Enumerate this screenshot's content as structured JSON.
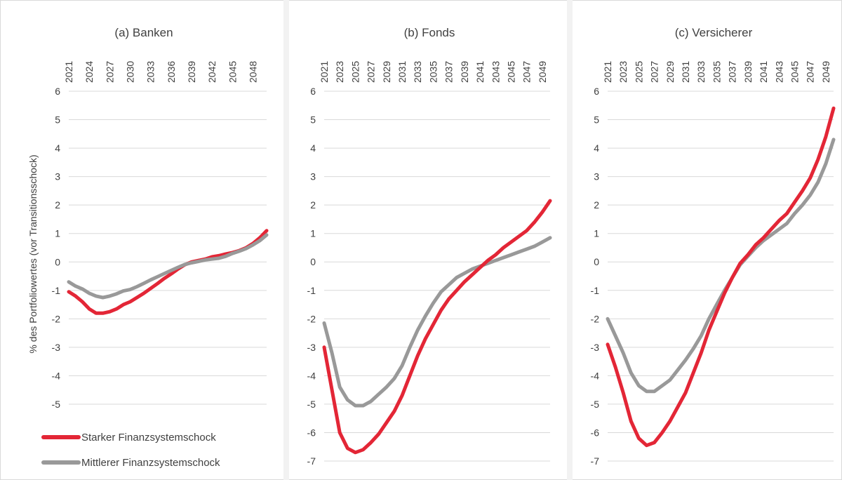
{
  "chart_data": {
    "type": "line",
    "ylabel": "% des Portfoliowertes (vor Transitionsschock)",
    "legend": {
      "placement": "bottom-left of panel (a)",
      "entries": [
        "Starker Finanzsystemschock",
        "Mittlerer Finanzsystemschock"
      ]
    },
    "colors": {
      "Starker Finanzsystemschock": "#e32636",
      "Mittlerer Finanzsystemschock": "#999999"
    },
    "grid": "horizontal",
    "panels": [
      {
        "title": "(a) Banken",
        "x_axis_position": "top",
        "x_ticks": [
          "2021",
          "2024",
          "2027",
          "2030",
          "2033",
          "2036",
          "2039",
          "2042",
          "2045",
          "2048"
        ],
        "ylim": [
          -5,
          6
        ],
        "y_ticks": [
          "6",
          "5",
          "4",
          "3",
          "2",
          "1",
          "0",
          "-1",
          "-2",
          "-3",
          "-4",
          "-5"
        ],
        "x": [
          2021,
          2022,
          2023,
          2024,
          2025,
          2026,
          2027,
          2028,
          2029,
          2030,
          2031,
          2032,
          2033,
          2034,
          2035,
          2036,
          2037,
          2038,
          2039,
          2040,
          2041,
          2042,
          2043,
          2044,
          2045,
          2046,
          2047,
          2048,
          2049,
          2050
        ],
        "series": [
          {
            "name": "Starker Finanzsystemschock",
            "values": [
              -1.05,
              -1.2,
              -1.4,
              -1.65,
              -1.8,
              -1.8,
              -1.75,
              -1.65,
              -1.5,
              -1.4,
              -1.25,
              -1.1,
              -0.93,
              -0.76,
              -0.58,
              -0.42,
              -0.25,
              -0.1,
              0.0,
              0.05,
              0.1,
              0.18,
              0.22,
              0.28,
              0.33,
              0.4,
              0.5,
              0.65,
              0.85,
              1.1
            ]
          },
          {
            "name": "Mittlerer Finanzsystemschock",
            "values": [
              -0.7,
              -0.85,
              -0.95,
              -1.1,
              -1.2,
              -1.25,
              -1.2,
              -1.12,
              -1.02,
              -0.97,
              -0.87,
              -0.75,
              -0.63,
              -0.52,
              -0.41,
              -0.3,
              -0.19,
              -0.09,
              -0.03,
              0.02,
              0.07,
              0.1,
              0.13,
              0.2,
              0.3,
              0.38,
              0.47,
              0.6,
              0.75,
              0.95
            ]
          }
        ]
      },
      {
        "title": "(b) Fonds",
        "x_axis_position": "top",
        "x_ticks": [
          "2021",
          "2023",
          "2025",
          "2027",
          "2029",
          "2031",
          "2033",
          "2035",
          "2037",
          "2039",
          "2041",
          "2043",
          "2045",
          "2047",
          "2049"
        ],
        "ylim": [
          -7,
          6
        ],
        "y_ticks": [
          "6",
          "5",
          "4",
          "3",
          "2",
          "1",
          "0",
          "-1",
          "-2",
          "-3",
          "-4",
          "-5",
          "-6",
          "-7"
        ],
        "x": [
          2021,
          2022,
          2023,
          2024,
          2025,
          2026,
          2027,
          2028,
          2029,
          2030,
          2031,
          2032,
          2033,
          2034,
          2035,
          2036,
          2037,
          2038,
          2039,
          2040,
          2041,
          2042,
          2043,
          2044,
          2045,
          2046,
          2047,
          2048,
          2049,
          2050
        ],
        "series": [
          {
            "name": "Starker Finanzsystemschock",
            "values": [
              -3.0,
              -4.5,
              -6.0,
              -6.55,
              -6.7,
              -6.6,
              -6.35,
              -6.05,
              -5.65,
              -5.25,
              -4.7,
              -4.0,
              -3.3,
              -2.7,
              -2.2,
              -1.7,
              -1.3,
              -1.0,
              -0.7,
              -0.45,
              -0.2,
              0.05,
              0.25,
              0.5,
              0.7,
              0.9,
              1.1,
              1.4,
              1.75,
              2.15
            ]
          },
          {
            "name": "Mittlerer Finanzsystemschock",
            "values": [
              -2.15,
              -3.2,
              -4.4,
              -4.85,
              -5.05,
              -5.05,
              -4.9,
              -4.65,
              -4.4,
              -4.1,
              -3.65,
              -3.0,
              -2.4,
              -1.9,
              -1.45,
              -1.05,
              -0.8,
              -0.55,
              -0.4,
              -0.25,
              -0.15,
              -0.05,
              0.05,
              0.15,
              0.25,
              0.35,
              0.45,
              0.55,
              0.7,
              0.85
            ]
          }
        ]
      },
      {
        "title": "(c) Versicherer",
        "x_axis_position": "top",
        "x_ticks": [
          "2021",
          "2023",
          "2025",
          "2027",
          "2029",
          "2031",
          "2033",
          "2035",
          "2037",
          "2039",
          "2041",
          "2043",
          "2045",
          "2047",
          "2049"
        ],
        "ylim": [
          -7,
          6
        ],
        "y_ticks": [
          "6",
          "5",
          "4",
          "3",
          "2",
          "1",
          "0",
          "-1",
          "-2",
          "-3",
          "-4",
          "-5",
          "-6",
          "-7"
        ],
        "x": [
          2021,
          2022,
          2023,
          2024,
          2025,
          2026,
          2027,
          2028,
          2029,
          2030,
          2031,
          2032,
          2033,
          2034,
          2035,
          2036,
          2037,
          2038,
          2039,
          2040,
          2041,
          2042,
          2043,
          2044,
          2045,
          2046,
          2047,
          2048,
          2049,
          2050
        ],
        "series": [
          {
            "name": "Starker Finanzsystemschock",
            "values": [
              -2.9,
              -3.7,
              -4.6,
              -5.6,
              -6.2,
              -6.45,
              -6.35,
              -6.0,
              -5.6,
              -5.1,
              -4.6,
              -3.9,
              -3.2,
              -2.4,
              -1.75,
              -1.1,
              -0.55,
              -0.05,
              0.25,
              0.6,
              0.85,
              1.15,
              1.45,
              1.7,
              2.1,
              2.5,
              2.95,
              3.6,
              4.4,
              5.4
            ]
          },
          {
            "name": "Mittlerer Finanzsystemschock",
            "values": [
              -2.0,
              -2.6,
              -3.2,
              -3.9,
              -4.35,
              -4.55,
              -4.55,
              -4.35,
              -4.15,
              -3.8,
              -3.45,
              -3.05,
              -2.6,
              -2.0,
              -1.5,
              -1.0,
              -0.55,
              -0.1,
              0.2,
              0.5,
              0.75,
              0.95,
              1.15,
              1.35,
              1.7,
              2.0,
              2.35,
              2.8,
              3.45,
              4.3
            ]
          }
        ]
      }
    ]
  }
}
